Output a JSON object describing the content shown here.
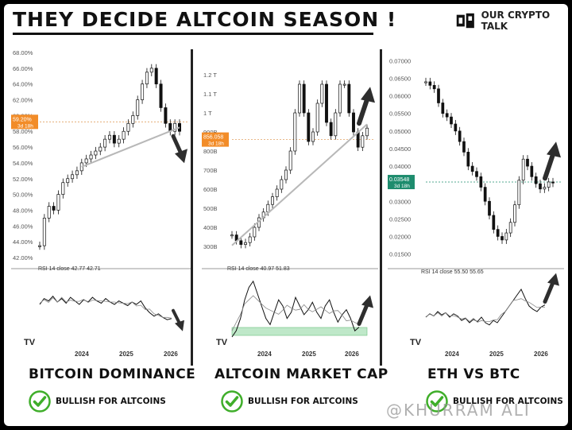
{
  "headline": "THEY DECIDE ALTCOIN SEASON !",
  "brand": {
    "name": "OUR CRYPTO TALK"
  },
  "watermark": "@KHURRAM ALI",
  "badge_label": "BULLISH FOR ALTCOINS",
  "colors": {
    "candle": "#111111",
    "trend": "#b8b8b8",
    "arrow": "#2e2e2e",
    "check": "#3fae2a",
    "price_tag_orange": "#f28c28",
    "price_tag_green": "#1e8c6e",
    "rsi_band": "#bfe8c9"
  },
  "chart_data": [
    {
      "type": "line",
      "title": "BITCOIN DOMINANCE",
      "ylim": [
        42,
        68
      ],
      "yticks": [
        "42.00%",
        "44.00%",
        "46.00%",
        "48.00%",
        "50.00%",
        "52.00%",
        "54.00%",
        "56.00%",
        "58.00%",
        "60.00%",
        "62.00%",
        "64.00%",
        "66.00%",
        "68.00%"
      ],
      "x_labels": [
        "2024",
        "2025",
        "2026"
      ],
      "series": [
        {
          "values": [
            43.5,
            47,
            48.5,
            48,
            50,
            51.5,
            52,
            52.5,
            53,
            54,
            54.5,
            55,
            55.5,
            56,
            57,
            57.5,
            56.5,
            57,
            58,
            59,
            60,
            62,
            64,
            65.5,
            66,
            64,
            61,
            59,
            58,
            59,
            58
          ]
        }
      ],
      "price_tag": {
        "value": "59.20%",
        "sub": "3d 18h",
        "level": 59.2
      },
      "trendline": [
        [
          9,
          53.5
        ],
        [
          30,
          58.5
        ]
      ],
      "arrow": "down",
      "rsi": {
        "label": "RSI 14 close",
        "v1": "42.77",
        "v2": "42.71",
        "values": [
          55,
          60,
          58,
          62,
          57,
          60,
          56,
          61,
          58,
          55,
          59,
          57,
          61,
          58,
          56,
          60,
          57,
          55,
          58,
          56,
          54,
          57,
          55,
          58,
          52,
          48,
          45,
          47,
          44,
          42,
          43
        ]
      },
      "verdict": "BULLISH FOR ALTCOINS"
    },
    {
      "type": "line",
      "title": "ALTCOIN MARKET CAP",
      "ylim": [
        250,
        1250
      ],
      "yticks": [
        "300B",
        "400B",
        "500B",
        "600B",
        "700B",
        "800B",
        "900B",
        "1 T",
        "1.1 T",
        "1.2 T"
      ],
      "x_labels": [
        "2024",
        "2025",
        "2026"
      ],
      "series": [
        {
          "values": [
            360,
            330,
            310,
            320,
            350,
            400,
            450,
            480,
            520,
            560,
            600,
            650,
            700,
            800,
            1000,
            1150,
            1000,
            850,
            900,
            1050,
            1150,
            950,
            880,
            1000,
            1150,
            1150,
            1000,
            900,
            820,
            880,
            920
          ]
        }
      ],
      "price_tag": {
        "value": "856.058",
        "sub": "3d 18h",
        "level": 860
      },
      "trendline": [
        [
          0,
          305
        ],
        [
          30,
          940
        ]
      ],
      "arrow": "up",
      "rsi": {
        "label": "RSI 14 close",
        "v1": "40.97",
        "v2": "51.83",
        "values": [
          30,
          35,
          45,
          60,
          70,
          75,
          65,
          55,
          45,
          40,
          50,
          60,
          55,
          45,
          50,
          62,
          55,
          48,
          52,
          58,
          50,
          45,
          55,
          60,
          50,
          42,
          48,
          52,
          45,
          35,
          38
        ]
      },
      "verdict": "BULLISH FOR ALTCOINS"
    },
    {
      "type": "line",
      "title": "ETH VS BTC",
      "ylim": [
        0.014,
        0.071
      ],
      "yticks": [
        "0.01500",
        "0.02000",
        "0.02500",
        "0.03000",
        "0.03500",
        "0.04000",
        "0.04500",
        "0.05000",
        "0.05500",
        "0.06000",
        "0.06500",
        "0.07000"
      ],
      "x_labels": [
        "2024",
        "2025",
        "2026"
      ],
      "series": [
        {
          "values": [
            0.064,
            0.063,
            0.062,
            0.058,
            0.055,
            0.054,
            0.052,
            0.05,
            0.047,
            0.044,
            0.04,
            0.0385,
            0.037,
            0.034,
            0.03,
            0.026,
            0.022,
            0.02,
            0.019,
            0.021,
            0.024,
            0.029,
            0.036,
            0.042,
            0.04,
            0.037,
            0.035,
            0.0335,
            0.034,
            0.0355,
            0.0352
          ]
        }
      ],
      "price_tag": {
        "value": "0.03548",
        "sub": "3d 18h",
        "level": 0.03548
      },
      "trendline": null,
      "arrow": "up",
      "rsi": {
        "label": "RSI 14 close",
        "v1": "55.50",
        "v2": "55.65",
        "values": [
          45,
          48,
          46,
          50,
          47,
          49,
          45,
          48,
          46,
          42,
          44,
          40,
          43,
          41,
          45,
          40,
          38,
          42,
          40,
          45,
          50,
          55,
          60,
          65,
          70,
          62,
          55,
          52,
          50,
          54,
          56
        ]
      },
      "verdict": "BULLISH FOR ALTCOINS"
    }
  ]
}
